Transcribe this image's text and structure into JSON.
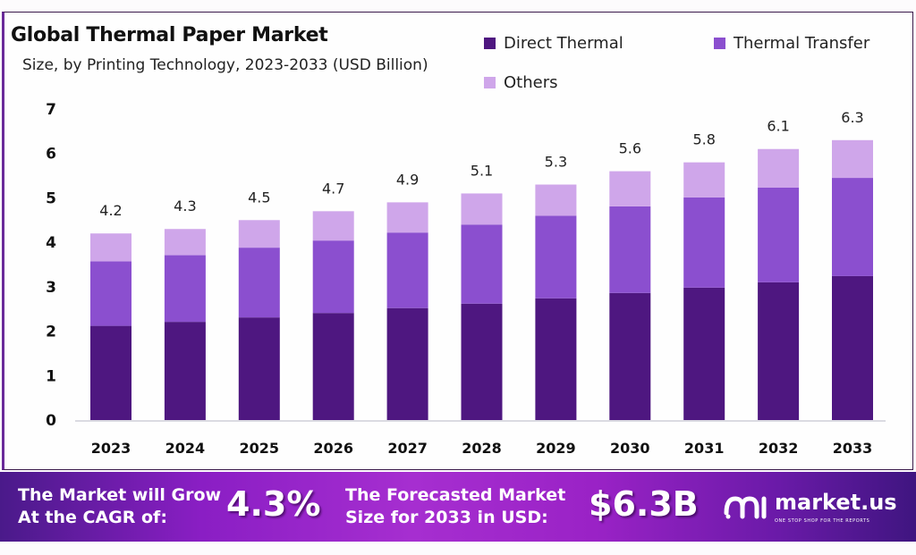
{
  "header": {
    "title": "Global Thermal Paper Market",
    "subtitle": "Size, by Printing Technology, 2023-2033 (USD Billion)"
  },
  "colors": {
    "direct_thermal": "#4e1780",
    "thermal_transfer": "#8b4fcf",
    "others": "#cfa6ea"
  },
  "chart_data": {
    "type": "bar",
    "stacked": true,
    "title": "Global Thermal Paper Market",
    "subtitle": "Size, by Printing Technology, 2023-2033 (USD Billion)",
    "xlabel": "",
    "ylabel": "",
    "ylim": [
      0,
      7
    ],
    "yticks": [
      "0",
      "1",
      "2",
      "3",
      "4",
      "5",
      "6",
      "7"
    ],
    "grid": false,
    "legend_position": "top-right",
    "categories": [
      "2023",
      "2024",
      "2025",
      "2026",
      "2027",
      "2028",
      "2029",
      "2030",
      "2031",
      "2032",
      "2033"
    ],
    "series": [
      {
        "name": "Direct Thermal",
        "values": [
          2.12,
          2.21,
          2.31,
          2.41,
          2.52,
          2.62,
          2.74,
          2.86,
          2.98,
          3.1,
          3.24
        ]
      },
      {
        "name": "Thermal Transfer",
        "values": [
          1.45,
          1.5,
          1.57,
          1.63,
          1.7,
          1.78,
          1.86,
          1.95,
          2.03,
          2.13,
          2.21
        ]
      },
      {
        "name": "Others",
        "values": [
          0.63,
          0.59,
          0.62,
          0.66,
          0.68,
          0.7,
          0.7,
          0.79,
          0.79,
          0.87,
          0.85
        ]
      }
    ],
    "totals": [
      4.2,
      4.3,
      4.5,
      4.7,
      4.9,
      5.1,
      5.3,
      5.6,
      5.8,
      6.1,
      6.3
    ],
    "total_labels": [
      "4.2",
      "4.3",
      "4.5",
      "4.7",
      "4.9",
      "5.1",
      "5.3",
      "5.6",
      "5.8",
      "6.1",
      "6.3"
    ]
  },
  "legend": [
    {
      "label": "Direct Thermal"
    },
    {
      "label": "Thermal Transfer"
    },
    {
      "label": "Others"
    }
  ],
  "banner": {
    "cagr_text_line1": "The Market will Grow",
    "cagr_text_line2": "At the CAGR of:",
    "cagr_value": "4.3%",
    "forecast_text_line1": "The Forecasted Market",
    "forecast_text_line2": "Size for 2033 in USD:",
    "forecast_value": "$6.3B",
    "brand_name": "market.us",
    "brand_tagline": "ONE STOP SHOP FOR THE REPORTS"
  }
}
